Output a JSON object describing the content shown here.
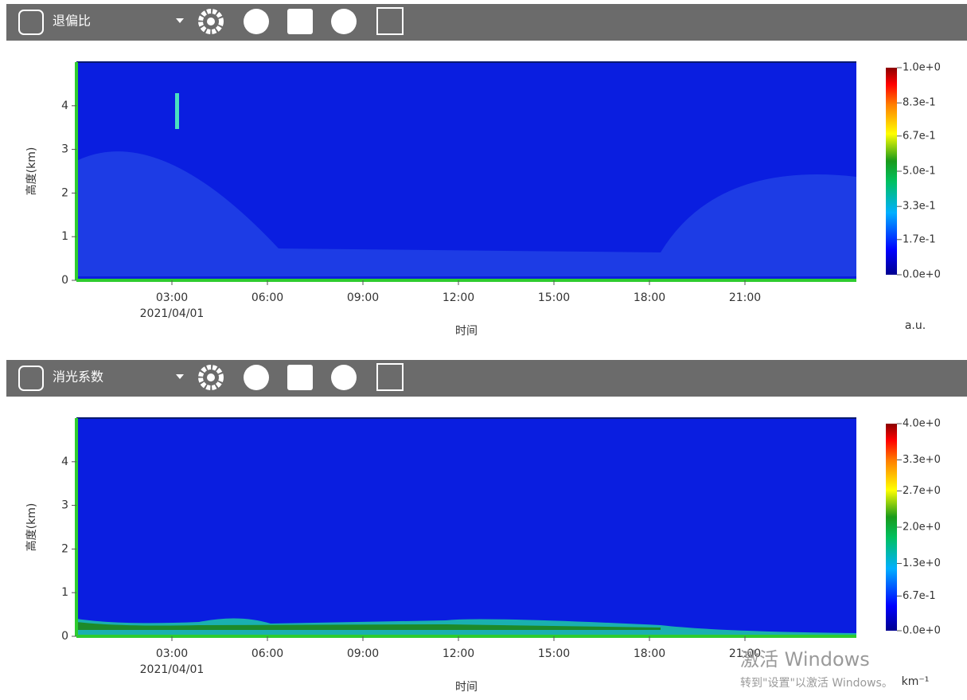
{
  "panels": [
    {
      "title": "退偏比",
      "ylabel": "高度(km)",
      "xlabel": "时间",
      "date": "2021/04/01",
      "ylim": [
        0,
        5
      ],
      "yticks": [
        0,
        1,
        2,
        3,
        4
      ],
      "xlim": [
        0,
        24.5
      ],
      "xticks": [
        {
          "value": 3,
          "label": "03:00"
        },
        {
          "value": 6,
          "label": "06:00"
        },
        {
          "value": 9,
          "label": "09:00"
        },
        {
          "value": 12,
          "label": "12:00"
        },
        {
          "value": 15,
          "label": "15:00"
        },
        {
          "value": 18,
          "label": "18:00"
        },
        {
          "value": 21,
          "label": "21:00"
        }
      ],
      "colorbar": {
        "lim": [
          0,
          1
        ],
        "unit": "a.u.",
        "ticks": [
          {
            "value": 1.0,
            "label": "1.0e+0"
          },
          {
            "value": 0.83,
            "label": "8.3e-1"
          },
          {
            "value": 0.67,
            "label": "6.7e-1"
          },
          {
            "value": 0.5,
            "label": "5.0e-1"
          },
          {
            "value": 0.33,
            "label": "3.3e-1"
          },
          {
            "value": 0.17,
            "label": "1.7e-1"
          },
          {
            "value": 0,
            "label": "0.0e+0"
          }
        ]
      }
    },
    {
      "title": "消光系数",
      "ylabel": "高度(km)",
      "xlabel": "时间",
      "date": "2021/04/01",
      "ylim": [
        0,
        5
      ],
      "yticks": [
        0,
        1,
        2,
        3,
        4
      ],
      "xlim": [
        0,
        24.5
      ],
      "xticks": [
        {
          "value": 3,
          "label": "03:00"
        },
        {
          "value": 6,
          "label": "06:00"
        },
        {
          "value": 9,
          "label": "09:00"
        },
        {
          "value": 12,
          "label": "12:00"
        },
        {
          "value": 15,
          "label": "15:00"
        },
        {
          "value": 18,
          "label": "18:00"
        },
        {
          "value": 21,
          "label": "21:00"
        }
      ],
      "colorbar": {
        "lim": [
          0,
          4
        ],
        "unit": "km⁻¹",
        "ticks": [
          {
            "value": 4.0,
            "label": "4.0e+0"
          },
          {
            "value": 3.3,
            "label": "3.3e+0"
          },
          {
            "value": 2.7,
            "label": "2.7e+0"
          },
          {
            "value": 2.0,
            "label": "2.0e+0"
          },
          {
            "value": 1.3,
            "label": "1.3e+0"
          },
          {
            "value": 0.67,
            "label": "6.7e-1"
          },
          {
            "value": 0,
            "label": "0.0e+0"
          }
        ]
      }
    }
  ],
  "watermark": {
    "line1": "激活 Windows",
    "line2": "转到\"设置\"以激活 Windows。"
  }
}
